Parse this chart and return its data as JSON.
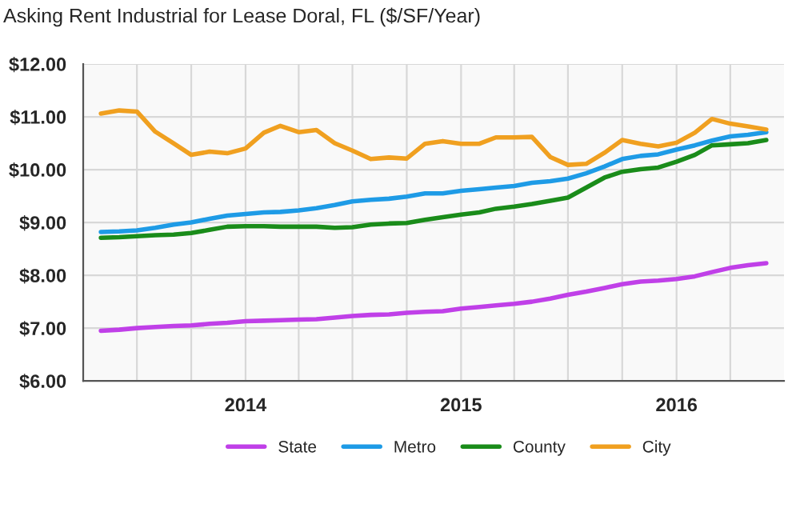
{
  "chart_data": {
    "type": "line",
    "title": "Asking Rent Industrial for Lease Doral, FL ($/SF/Year)",
    "x": [
      "2013-05",
      "2013-06",
      "2013-07",
      "2013-08",
      "2013-09",
      "2013-10",
      "2013-11",
      "2013-12",
      "2014-01",
      "2014-02",
      "2014-03",
      "2014-04",
      "2014-05",
      "2014-06",
      "2014-07",
      "2014-08",
      "2014-09",
      "2014-10",
      "2014-11",
      "2014-12",
      "2015-01",
      "2015-02",
      "2015-03",
      "2015-04",
      "2015-05",
      "2015-06",
      "2015-07",
      "2015-08",
      "2015-09",
      "2015-10",
      "2015-11",
      "2015-12",
      "2016-01",
      "2016-02",
      "2016-03",
      "2016-04",
      "2016-05",
      "2016-06"
    ],
    "series": [
      {
        "name": "State",
        "color": "#c040e8",
        "values": [
          6.95,
          6.97,
          7.0,
          7.02,
          7.04,
          7.05,
          7.08,
          7.1,
          7.13,
          7.14,
          7.15,
          7.16,
          7.17,
          7.2,
          7.23,
          7.25,
          7.26,
          7.29,
          7.31,
          7.32,
          7.37,
          7.4,
          7.43,
          7.46,
          7.5,
          7.56,
          7.63,
          7.69,
          7.76,
          7.83,
          7.88,
          7.9,
          7.93,
          7.98,
          8.06,
          8.14,
          8.19,
          8.23
        ]
      },
      {
        "name": "Metro",
        "color": "#1e9be6",
        "values": [
          8.82,
          8.83,
          8.85,
          8.9,
          8.96,
          9.0,
          9.07,
          9.13,
          9.16,
          9.19,
          9.2,
          9.23,
          9.27,
          9.33,
          9.4,
          9.43,
          9.45,
          9.49,
          9.55,
          9.55,
          9.6,
          9.63,
          9.66,
          9.69,
          9.75,
          9.78,
          9.83,
          9.93,
          10.06,
          10.2,
          10.26,
          10.29,
          10.38,
          10.46,
          10.55,
          10.63,
          10.66,
          10.71
        ]
      },
      {
        "name": "County",
        "color": "#1a8c1a",
        "values": [
          8.71,
          8.72,
          8.74,
          8.76,
          8.77,
          8.8,
          8.86,
          8.92,
          8.93,
          8.93,
          8.92,
          8.92,
          8.92,
          8.9,
          8.91,
          8.96,
          8.98,
          8.99,
          9.05,
          9.1,
          9.15,
          9.19,
          9.26,
          9.3,
          9.35,
          9.41,
          9.47,
          9.66,
          9.85,
          9.96,
          10.01,
          10.04,
          10.15,
          10.28,
          10.46,
          10.48,
          10.5,
          10.56
        ]
      },
      {
        "name": "City",
        "color": "#f0a020",
        "values": [
          11.06,
          11.12,
          11.1,
          10.72,
          10.5,
          10.28,
          10.34,
          10.31,
          10.4,
          10.7,
          10.83,
          10.71,
          10.75,
          10.5,
          10.36,
          10.2,
          10.23,
          10.21,
          10.49,
          10.54,
          10.49,
          10.49,
          10.61,
          10.61,
          10.62,
          10.24,
          10.09,
          10.11,
          10.32,
          10.56,
          10.49,
          10.44,
          10.51,
          10.7,
          10.96,
          10.87,
          10.82,
          10.76
        ]
      }
    ],
    "xlim": [
      "2013-04",
      "2016-07"
    ],
    "xticks": [
      {
        "value": "2013-07",
        "label": null
      },
      {
        "value": "2013-10",
        "label": null
      },
      {
        "value": "2014-01",
        "label": "2014"
      },
      {
        "value": "2014-04",
        "label": null
      },
      {
        "value": "2014-07",
        "label": null
      },
      {
        "value": "2014-10",
        "label": null
      },
      {
        "value": "2015-01",
        "label": "2015"
      },
      {
        "value": "2015-04",
        "label": null
      },
      {
        "value": "2015-07",
        "label": null
      },
      {
        "value": "2015-10",
        "label": null
      },
      {
        "value": "2016-01",
        "label": "2016"
      },
      {
        "value": "2016-04",
        "label": null
      }
    ],
    "ylim": [
      6,
      12
    ],
    "yticks": [
      {
        "value": 6,
        "label": "$6.00"
      },
      {
        "value": 7,
        "label": "$7.00"
      },
      {
        "value": 8,
        "label": "$8.00"
      },
      {
        "value": 9,
        "label": "$9.00"
      },
      {
        "value": 10,
        "label": "$10.00"
      },
      {
        "value": 11,
        "label": "$11.00"
      },
      {
        "value": 12,
        "label": "$12.00"
      }
    ],
    "grid": true,
    "legend": "bottom",
    "marker": "none",
    "line_style": "solid"
  }
}
